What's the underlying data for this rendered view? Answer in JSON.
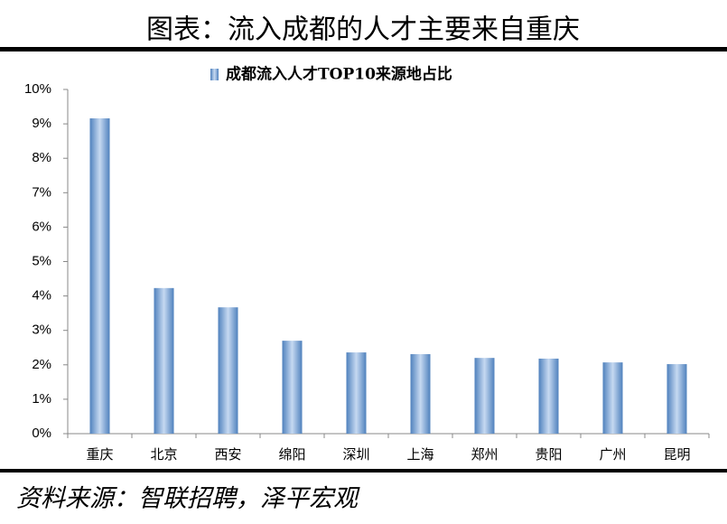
{
  "chart_data": {
    "type": "bar",
    "title": "图表：流入成都的人才主要来自重庆",
    "source": "资料来源：智联招聘，泽平宏观",
    "categories": [
      "重庆",
      "北京",
      "西安",
      "绵阳",
      "深圳",
      "上海",
      "郑州",
      "贵阳",
      "广州",
      "昆明"
    ],
    "series": [
      {
        "name": "成都流入人才TOP10来源地占比",
        "color": "#4f81bd",
        "values": [
          9.16,
          4.23,
          3.67,
          2.7,
          2.36,
          2.31,
          2.2,
          2.18,
          2.07,
          2.02
        ]
      }
    ],
    "ylim": [
      0,
      10
    ],
    "yticks": [
      {
        "value": 0,
        "label": "0%"
      },
      {
        "value": 1,
        "label": "1%"
      },
      {
        "value": 2,
        "label": "2%"
      },
      {
        "value": 3,
        "label": "3%"
      },
      {
        "value": 4,
        "label": "4%"
      },
      {
        "value": 5,
        "label": "5%"
      },
      {
        "value": 6,
        "label": "6%"
      },
      {
        "value": 7,
        "label": "7%"
      },
      {
        "value": 8,
        "label": "8%"
      },
      {
        "value": 9,
        "label": "9%"
      },
      {
        "value": 10,
        "label": "10%"
      }
    ],
    "legend": "top"
  }
}
